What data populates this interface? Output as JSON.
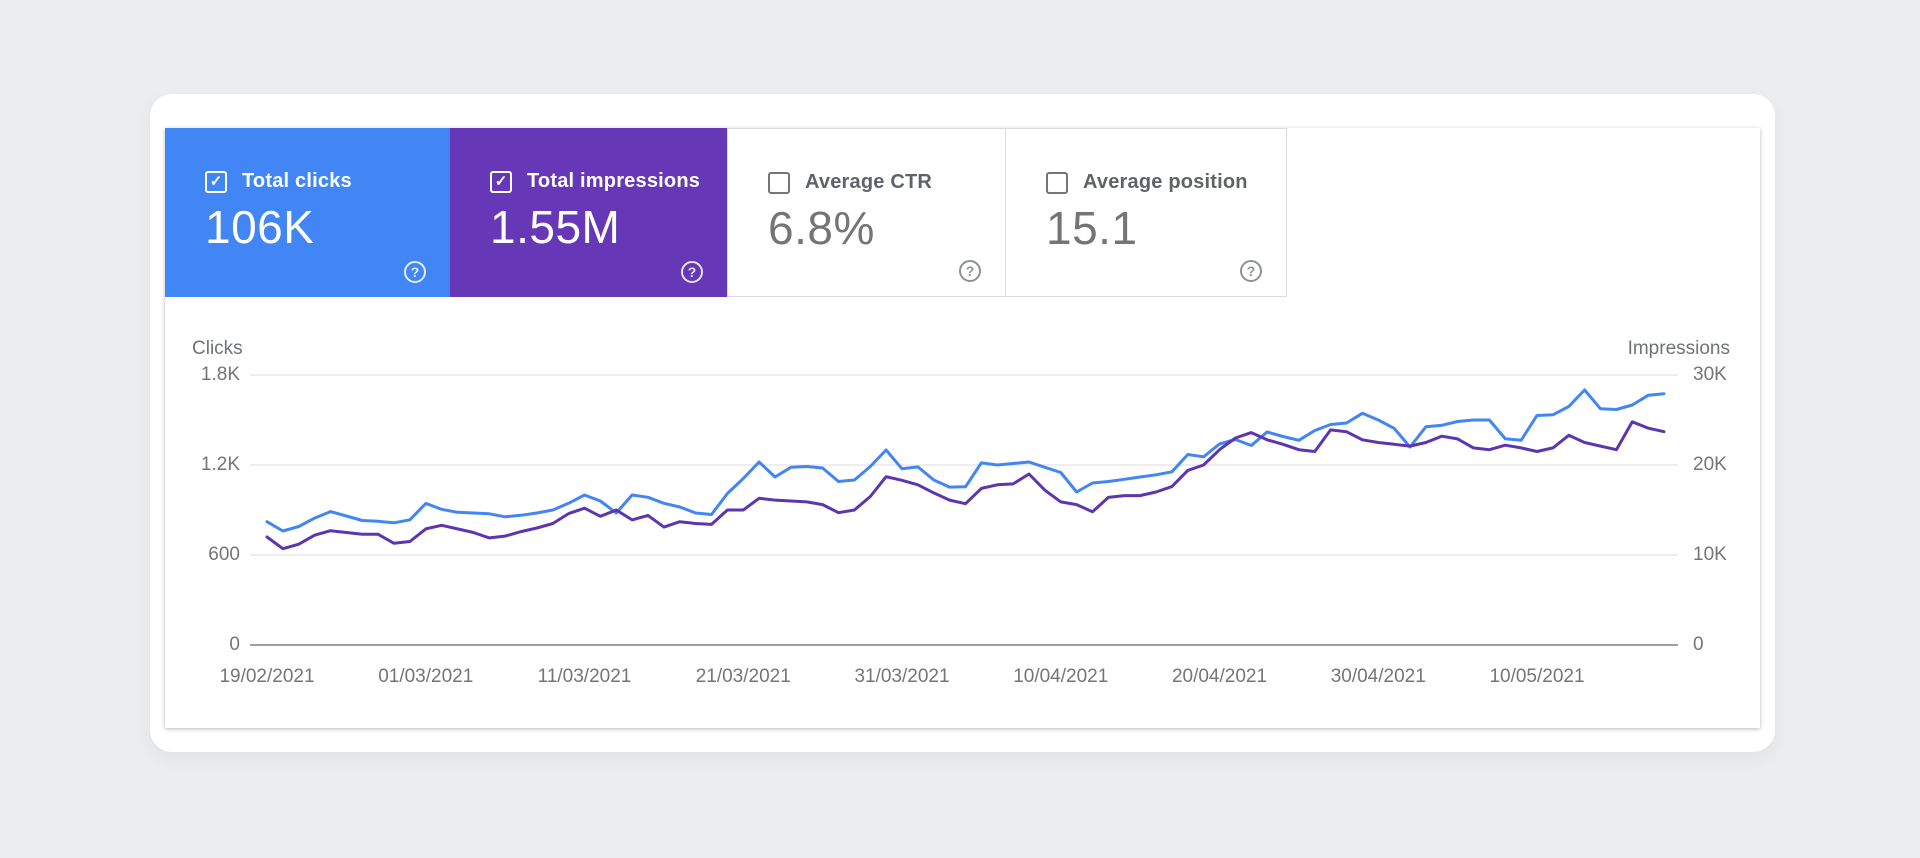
{
  "cards": [
    {
      "label": "Total clicks",
      "value": "106K",
      "checked": true,
      "selected": true,
      "color": "#4285f4"
    },
    {
      "label": "Total impressions",
      "value": "1.55M",
      "checked": true,
      "selected": true,
      "color": "#6637b7"
    },
    {
      "label": "Average CTR",
      "value": "6.8%",
      "checked": false,
      "selected": false,
      "color": "#ffffff"
    },
    {
      "label": "Average position",
      "value": "15.1",
      "checked": false,
      "selected": false,
      "color": "#ffffff"
    }
  ],
  "icons": {
    "check": "✓",
    "help": "?"
  },
  "colors": {
    "clicks_accent": "#4285f4",
    "impressions_accent": "#6637b7",
    "card_border": "#dadce0",
    "grid": "#e9e9e9",
    "axis_line": "#9aa0a6",
    "tick_text": "#757575",
    "label_text": "#5f6368",
    "page_background": "#ebedee"
  },
  "chart_data": {
    "type": "line",
    "title": "",
    "xlabel": "",
    "grid": true,
    "legend_position": "none",
    "left_axis": {
      "title": "Clicks",
      "ticks": [
        "0",
        "600",
        "1.2K",
        "1.8K"
      ],
      "max": 1800
    },
    "right_axis": {
      "title": "Impressions",
      "ticks": [
        "0",
        "10K",
        "20K",
        "30K"
      ],
      "max": 30000
    },
    "x_tick_labels": [
      "19/02/2021",
      "01/03/2021",
      "11/03/2021",
      "21/03/2021",
      "31/03/2021",
      "10/04/2021",
      "20/04/2021",
      "30/04/2021",
      "10/05/2021"
    ],
    "x_tick_every_n_points": 10,
    "series": [
      {
        "name": "Clicks",
        "axis": "left",
        "color": "#4285f4",
        "values": [
          822,
          760,
          790,
          846,
          889,
          860,
          830,
          825,
          815,
          835,
          944,
          905,
          885,
          880,
          875,
          855,
          865,
          880,
          900,
          945,
          1000,
          960,
          880,
          1000,
          985,
          945,
          920,
          880,
          870,
          1010,
          1110,
          1220,
          1120,
          1185,
          1190,
          1180,
          1090,
          1100,
          1190,
          1300,
          1175,
          1187,
          1100,
          1053,
          1055,
          1215,
          1200,
          1210,
          1220,
          1185,
          1150,
          1020,
          1080,
          1090,
          1105,
          1120,
          1135,
          1155,
          1270,
          1255,
          1340,
          1370,
          1330,
          1420,
          1390,
          1365,
          1430,
          1470,
          1480,
          1545,
          1500,
          1445,
          1320,
          1455,
          1465,
          1490,
          1500,
          1500,
          1375,
          1365,
          1530,
          1535,
          1590,
          1700,
          1575,
          1570,
          1600,
          1665,
          1675
        ]
      },
      {
        "name": "Impressions",
        "axis": "right",
        "color": "#5e35b1",
        "values": [
          12000,
          10700,
          11200,
          12200,
          12700,
          12500,
          12300,
          12300,
          11300,
          11500,
          12900,
          13300,
          12900,
          12500,
          11900,
          12100,
          12600,
          13000,
          13500,
          14600,
          15200,
          14300,
          15000,
          13900,
          14400,
          13100,
          13700,
          13500,
          13400,
          15000,
          15000,
          16300,
          16100,
          16000,
          15900,
          15600,
          14700,
          15000,
          16500,
          18700,
          18300,
          17800,
          16900,
          16100,
          15700,
          17400,
          17800,
          17900,
          19000,
          17200,
          15900,
          15600,
          14800,
          16400,
          16600,
          16600,
          17000,
          17600,
          19400,
          20000,
          21700,
          23000,
          23600,
          22800,
          22300,
          21700,
          21500,
          23900,
          23700,
          22800,
          22500,
          22300,
          22100,
          22500,
          23200,
          22900,
          21900,
          21700,
          22200,
          21900,
          21500,
          21900,
          23300,
          22500,
          22100,
          21700,
          24800,
          24100,
          23700
        ]
      }
    ]
  }
}
